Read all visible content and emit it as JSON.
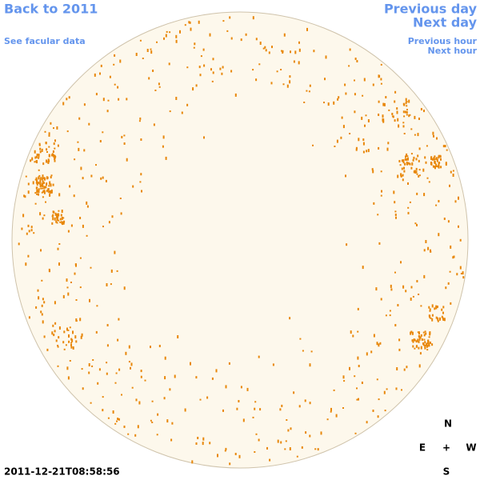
{
  "links": {
    "back": "Back to 2011",
    "facular_data": "See facular data",
    "previous_day": "Previous day",
    "next_day": "Next day",
    "previous_hour": "Previous hour",
    "next_hour": "Next hour"
  },
  "timestamp": "2011-12-21T08:58:56",
  "compass": {
    "north": "N",
    "east": "E",
    "center": "+",
    "west": "W",
    "south": "S"
  }
}
